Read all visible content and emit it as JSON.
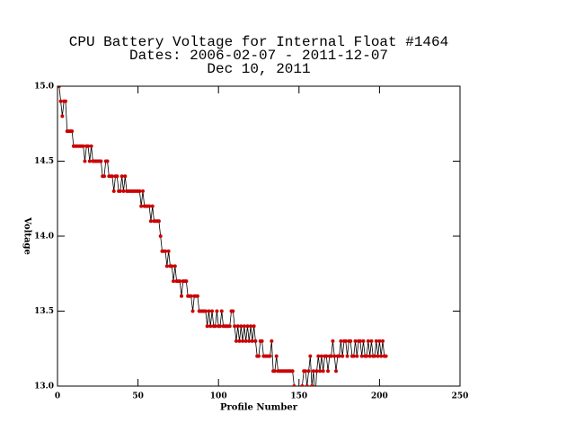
{
  "chart_data": {
    "type": "line",
    "title": "CPU Battery Voltage for Internal Float #1464",
    "subtitle": "Dates:  2006-02-07 -  2011-12-07",
    "date": "Dec 10, 2011",
    "x_label": "Profile Number",
    "y_label": "Voltage",
    "xlim": [
      0,
      250
    ],
    "xticks": [
      0,
      50,
      100,
      150,
      200,
      250
    ],
    "ylim": [
      13,
      15
    ],
    "yticks": [
      {
        "value": 13,
        "label": "13.0"
      },
      13.5,
      {
        "value": 14,
        "label": "14.0"
      },
      14.5,
      {
        "value": 15,
        "label": "15.0"
      }
    ],
    "line_color": "#000000",
    "marker_color": "#cc0000",
    "x": [
      1,
      2,
      3,
      4,
      5,
      6,
      7,
      8,
      9,
      10,
      11,
      12,
      13,
      14,
      15,
      16,
      17,
      18,
      19,
      20,
      21,
      22,
      23,
      24,
      25,
      26,
      27,
      28,
      29,
      30,
      31,
      32,
      33,
      34,
      35,
      36,
      37,
      38,
      39,
      40,
      41,
      42,
      43,
      44,
      45,
      46,
      47,
      48,
      49,
      50,
      51,
      52,
      53,
      54,
      55,
      56,
      57,
      58,
      59,
      60,
      61,
      62,
      63,
      64,
      65,
      66,
      67,
      68,
      69,
      70,
      71,
      72,
      73,
      74,
      75,
      76,
      77,
      78,
      79,
      80,
      81,
      82,
      83,
      84,
      85,
      86,
      87,
      88,
      89,
      90,
      91,
      92,
      93,
      94,
      95,
      96,
      97,
      98,
      99,
      100,
      101,
      102,
      103,
      104,
      105,
      106,
      107,
      108,
      109,
      110,
      111,
      112,
      113,
      114,
      115,
      116,
      117,
      118,
      119,
      120,
      121,
      122,
      123,
      124,
      125,
      126,
      127,
      128,
      129,
      130,
      131,
      132,
      133,
      134,
      135,
      136,
      137,
      138,
      139,
      140,
      141,
      142,
      143,
      144,
      145,
      146,
      147,
      148,
      149,
      150,
      151,
      152,
      153,
      154,
      155,
      156,
      157,
      158,
      159,
      160,
      161,
      162,
      163,
      164,
      165,
      166,
      167,
      168,
      169,
      170,
      171,
      172,
      173,
      174,
      175,
      176,
      177,
      178,
      179,
      180,
      181,
      182,
      183,
      184,
      185,
      186,
      187,
      188,
      189,
      190,
      191,
      192,
      193,
      194,
      195,
      196,
      197,
      198,
      199,
      200,
      201,
      202,
      203,
      204
    ],
    "values": [
      15.0,
      14.9,
      14.8,
      14.9,
      14.9,
      14.7,
      14.7,
      14.7,
      14.7,
      14.6,
      14.6,
      14.6,
      14.6,
      14.6,
      14.6,
      14.6,
      14.5,
      14.6,
      14.6,
      14.5,
      14.6,
      14.5,
      14.5,
      14.5,
      14.5,
      14.5,
      14.5,
      14.4,
      14.4,
      14.5,
      14.5,
      14.4,
      14.4,
      14.4,
      14.3,
      14.4,
      14.4,
      14.3,
      14.3,
      14.4,
      14.3,
      14.4,
      14.3,
      14.3,
      14.3,
      14.3,
      14.3,
      14.3,
      14.3,
      14.3,
      14.3,
      14.2,
      14.3,
      14.2,
      14.2,
      14.2,
      14.2,
      14.1,
      14.2,
      14.1,
      14.1,
      14.1,
      14.1,
      14.0,
      13.9,
      13.9,
      13.9,
      13.8,
      13.9,
      13.8,
      13.8,
      13.7,
      13.8,
      13.7,
      13.7,
      13.7,
      13.6,
      13.7,
      13.7,
      13.7,
      13.6,
      13.6,
      13.6,
      13.5,
      13.6,
      13.6,
      13.6,
      13.5,
      13.5,
      13.5,
      13.5,
      13.5,
      13.4,
      13.5,
      13.4,
      13.5,
      13.4,
      13.4,
      13.5,
      13.4,
      13.4,
      13.5,
      13.4,
      13.4,
      13.4,
      13.4,
      13.4,
      13.5,
      13.5,
      13.4,
      13.3,
      13.4,
      13.3,
      13.4,
      13.3,
      13.4,
      13.3,
      13.4,
      13.3,
      13.4,
      13.3,
      13.4,
      13.3,
      13.2,
      13.2,
      13.3,
      13.3,
      13.2,
      13.2,
      13.2,
      13.2,
      13.2,
      13.3,
      13.1,
      13.1,
      13.2,
      13.1,
      13.1,
      13.1,
      13.1,
      13.1,
      13.1,
      13.1,
      13.1,
      13.1,
      13.1,
      13.0,
      12.9,
      12.9,
      12.9,
      12.9,
      13.0,
      13.1,
      13.1,
      13.0,
      13.1,
      13.2,
      13.0,
      13.1,
      12.9,
      13.1,
      13.2,
      13.1,
      13.2,
      13.1,
      13.2,
      13.2,
      13.1,
      13.2,
      13.2,
      13.3,
      13.2,
      13.1,
      13.2,
      13.2,
      13.3,
      13.2,
      13.3,
      13.3,
      13.2,
      13.3,
      13.3,
      13.2,
      13.2,
      13.3,
      13.2,
      13.3,
      13.3,
      13.2,
      13.3,
      13.2,
      13.2,
      13.3,
      13.2,
      13.3,
      13.2,
      13.2,
      13.3,
      13.2,
      13.3,
      13.2,
      13.3,
      13.2,
      13.2
    ]
  }
}
